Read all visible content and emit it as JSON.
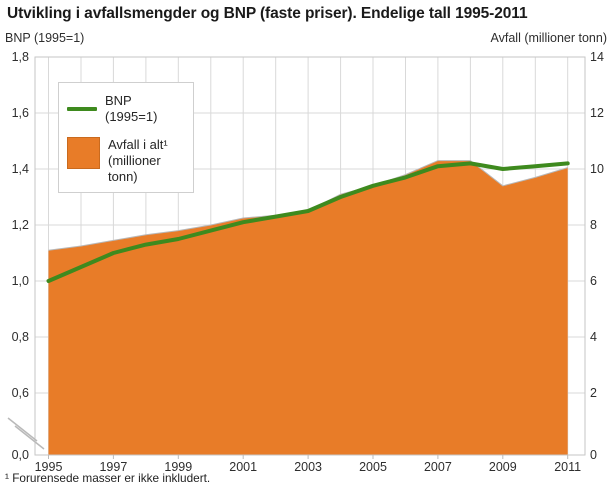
{
  "title": "Utvikling i avfallsmengder og BNP (faste priser). Endelige tall 1995-2011",
  "left_axis_title": "BNP (1995=1)",
  "right_axis_title": "Avfall (millioner tonn)",
  "footnote": "¹ Forurensede masser er ikke inkludert.",
  "legend": {
    "bnp_label": "BNP (1995=1)",
    "waste_label_line1": "Avfall i alt¹",
    "waste_label_line2": "(millioner tonn)"
  },
  "colors": {
    "bnp_line": "#3e8a1e",
    "waste_fill": "#e87c28",
    "waste_edge": "#b8b8b8",
    "waste_swatch_border": "#c96a1e",
    "grid": "#d9d9d9",
    "plot_border": "#c6c6c6",
    "break_mark": "#b9b9b9",
    "bottom_tick": "#bbbbbb"
  },
  "chart_data": {
    "type": "area",
    "title": "Utvikling i avfallsmengder og BNP (faste priser). Endelige tall 1995-2011",
    "x": [
      1995,
      1996,
      1997,
      1998,
      1999,
      2000,
      2001,
      2002,
      2003,
      2004,
      2005,
      2006,
      2007,
      2008,
      2009,
      2010,
      2011
    ],
    "series": [
      {
        "name": "BNP (1995=1)",
        "type": "line",
        "axis": "left",
        "values": [
          1.0,
          1.05,
          1.1,
          1.13,
          1.15,
          1.18,
          1.21,
          1.23,
          1.25,
          1.3,
          1.34,
          1.37,
          1.41,
          1.42,
          1.4,
          1.41,
          1.42
        ]
      },
      {
        "name": "Avfall i alt (millioner tonn)",
        "type": "area",
        "axis": "right",
        "values": [
          7.1,
          7.25,
          7.45,
          7.65,
          7.8,
          8.0,
          8.25,
          8.35,
          8.5,
          9.1,
          9.4,
          9.8,
          10.3,
          10.3,
          9.4,
          9.7,
          10.05
        ]
      }
    ],
    "left_axis": {
      "label": "BNP (1995=1)",
      "tick_values": [
        1.8,
        1.6,
        1.4,
        1.2,
        1.0,
        0.8,
        0.6,
        0.0
      ],
      "tick_labels": [
        "1,8",
        "1,6",
        "1,4",
        "1,2",
        "1,0",
        "0,8",
        "0,6",
        "0,0"
      ],
      "range": [
        0.0,
        1.8
      ],
      "axis_break_between": [
        0.0,
        0.6
      ]
    },
    "right_axis": {
      "label": "Avfall (millioner tonn)",
      "tick_values": [
        14,
        12,
        10,
        8,
        6,
        4,
        2,
        0
      ],
      "tick_labels": [
        "14",
        "12",
        "10",
        "8",
        "6",
        "4",
        "2",
        "0"
      ],
      "range": [
        0,
        14
      ]
    },
    "x_axis": {
      "tick_values": [
        1995,
        1997,
        1999,
        2001,
        2003,
        2005,
        2007,
        2009,
        2011
      ],
      "tick_labels": [
        "1995",
        "1997",
        "1999",
        "2001",
        "2003",
        "2005",
        "2007",
        "2009",
        "2011"
      ],
      "range": [
        1995,
        2011
      ]
    },
    "grid": true,
    "legend_position": "top-left-inside"
  }
}
